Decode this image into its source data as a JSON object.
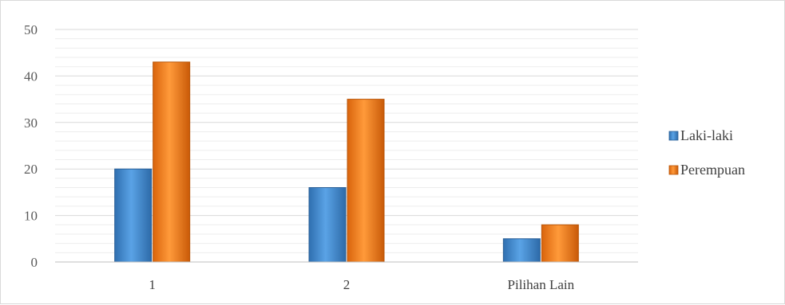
{
  "chart_data": {
    "type": "bar",
    "categories": [
      "1",
      "2",
      "Pilihan Lain"
    ],
    "series": [
      {
        "name": "Laki-laki",
        "values": [
          20,
          16,
          5
        ],
        "color": "#4a8fd4"
      },
      {
        "name": "Perempuan",
        "values": [
          43,
          35,
          8
        ],
        "color": "#f0821e"
      }
    ],
    "ylim": [
      0,
      50
    ],
    "yticks": [
      0,
      10,
      20,
      30,
      40,
      50
    ],
    "grid": true,
    "legend": "right",
    "title": "",
    "xlabel": "",
    "ylabel": ""
  }
}
